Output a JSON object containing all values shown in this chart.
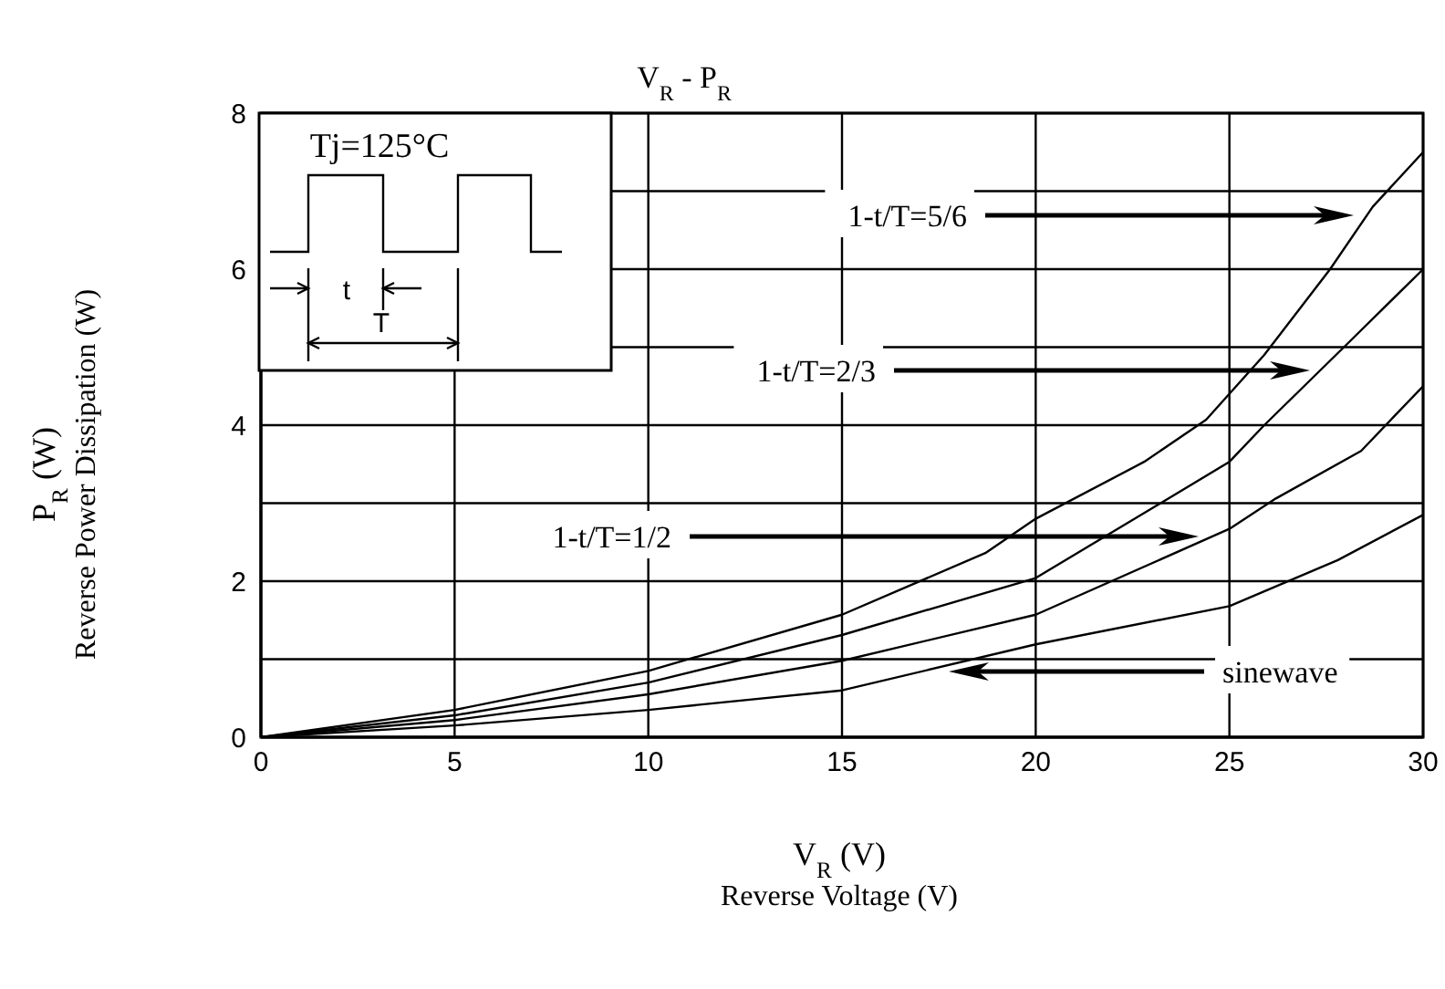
{
  "chart_data": {
    "type": "line",
    "title": "V$_{R}$ - P$_{R}$",
    "xlabel": "V$_{R}$ (V)\nReverse Voltage (V)",
    "ylabel": "P$_{R}$ (W)\nReverse Power Dissipation (W)",
    "xlim": [
      0,
      30
    ],
    "xticks": [
      0,
      5,
      10,
      15,
      20,
      25,
      30
    ],
    "ylim": [
      0,
      8
    ],
    "yticks": [
      0,
      {
        "value": 1,
        "label": null
      },
      2,
      {
        "value": 3,
        "label": null
      },
      4,
      {
        "value": 5,
        "label": null
      },
      6,
      {
        "value": 7,
        "label": null
      },
      8
    ],
    "grid": true,
    "series": [
      {
        "color": "#000000",
        "x": [
          0,
          5,
          10,
          15,
          18.7,
          20,
          22.8,
          24.4,
          25.9,
          27.6,
          28.7,
          30
        ],
        "values": [
          0,
          0.35,
          0.85,
          1.57,
          2.36,
          2.8,
          3.53,
          4.07,
          4.9,
          6.0,
          6.8,
          7.5
        ]
      },
      {
        "color": "#000000",
        "x": [
          0,
          5,
          10,
          15,
          20,
          25,
          25.9,
          28.1,
          30
        ],
        "values": [
          0,
          0.28,
          0.7,
          1.31,
          2.04,
          3.53,
          4.0,
          5.07,
          6.0
        ]
      },
      {
        "color": "#000000",
        "x": [
          0,
          5,
          10,
          15,
          20,
          25,
          26.2,
          28.4,
          30
        ],
        "values": [
          0,
          0.22,
          0.55,
          0.98,
          1.57,
          2.67,
          3.06,
          3.67,
          4.5
        ]
      },
      {
        "color": "#000000",
        "x": [
          0,
          5,
          10,
          15,
          20,
          25,
          27.8,
          30
        ],
        "values": [
          0,
          0.15,
          0.35,
          0.6,
          1.19,
          1.68,
          2.27,
          2.85
        ]
      }
    ],
    "annotations": [
      "Tj=125°C",
      "t",
      "T",
      "1-t/T=5/6",
      "1-t/T=2/3",
      "1-t/T=1/2",
      "sinewave"
    ]
  }
}
